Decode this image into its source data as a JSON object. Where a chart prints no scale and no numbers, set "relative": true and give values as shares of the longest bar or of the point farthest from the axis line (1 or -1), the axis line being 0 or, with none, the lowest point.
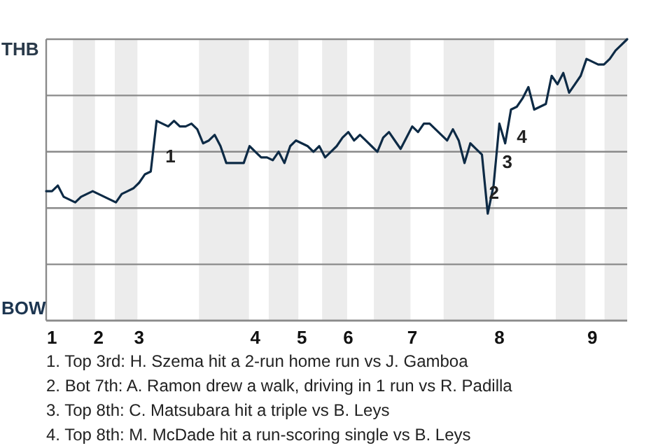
{
  "chart_data": {
    "type": "line",
    "relative": true,
    "categories": [
      null,
      "1",
      null,
      null,
      null,
      null,
      null,
      null,
      null,
      "2",
      null,
      null,
      null,
      null,
      null,
      null,
      "3",
      null,
      null,
      null,
      null,
      null,
      null,
      null,
      null,
      null,
      null,
      null,
      null,
      null,
      null,
      null,
      null,
      null,
      null,
      null,
      "4",
      null,
      null,
      null,
      null,
      null,
      null,
      null,
      "5",
      null,
      null,
      null,
      null,
      null,
      null,
      null,
      "6",
      null,
      null,
      null,
      null,
      null,
      null,
      null,
      null,
      null,
      null,
      "7",
      null,
      null,
      null,
      null,
      null,
      null,
      null,
      null,
      null,
      null,
      null,
      null,
      null,
      null,
      "8",
      null,
      null,
      null,
      null,
      null,
      null,
      null,
      null,
      null,
      null,
      null,
      null,
      null,
      null,
      null,
      "9",
      null,
      null,
      null,
      null,
      null,
      null
    ],
    "grid": "y",
    "marker": "none",
    "line_style": "solid",
    "series": [
      {
        "color": "#0d2a45",
        "values": [
          0.46,
          0.46,
          0.48,
          0.44,
          0.43,
          0.42,
          0.44,
          0.45,
          0.46,
          0.45,
          0.44,
          0.43,
          0.42,
          0.45,
          0.46,
          0.47,
          0.49,
          0.52,
          0.53,
          0.71,
          0.7,
          0.69,
          0.71,
          0.69,
          0.69,
          0.7,
          0.68,
          0.63,
          0.64,
          0.66,
          0.62,
          0.56,
          0.56,
          0.56,
          0.56,
          0.62,
          0.6,
          0.58,
          0.58,
          0.57,
          0.6,
          0.56,
          0.62,
          0.64,
          0.63,
          0.62,
          0.6,
          0.62,
          0.58,
          0.6,
          0.62,
          0.65,
          0.67,
          0.64,
          0.66,
          0.64,
          0.62,
          0.6,
          0.65,
          0.67,
          0.64,
          0.61,
          0.65,
          0.69,
          0.67,
          0.7,
          0.7,
          0.68,
          0.66,
          0.64,
          0.68,
          0.64,
          0.56,
          0.63,
          0.61,
          0.59,
          0.38,
          0.48,
          0.7,
          0.63,
          0.75,
          0.76,
          0.79,
          0.83,
          0.75,
          0.76,
          0.77,
          0.87,
          0.84,
          0.88,
          0.81,
          0.84,
          0.87,
          0.93,
          0.92,
          0.91,
          0.91,
          0.93,
          0.96,
          0.98,
          1.0
        ]
      }
    ],
    "annotations": [
      "THB",
      "BOW",
      "1",
      "2",
      "3",
      "4",
      "1. Top 3rd: H. Szema hit a 2-run home run vs J. Gamboa",
      "2. Bot 7th: A. Ramon drew a walk, driving in 1 run vs R. Padilla",
      "3. Top 8th: C. Matsubara hit a triple vs B. Leys",
      "4. Top 8th: M. McDade hit a run-scoring single vs B. Leys"
    ]
  }
}
